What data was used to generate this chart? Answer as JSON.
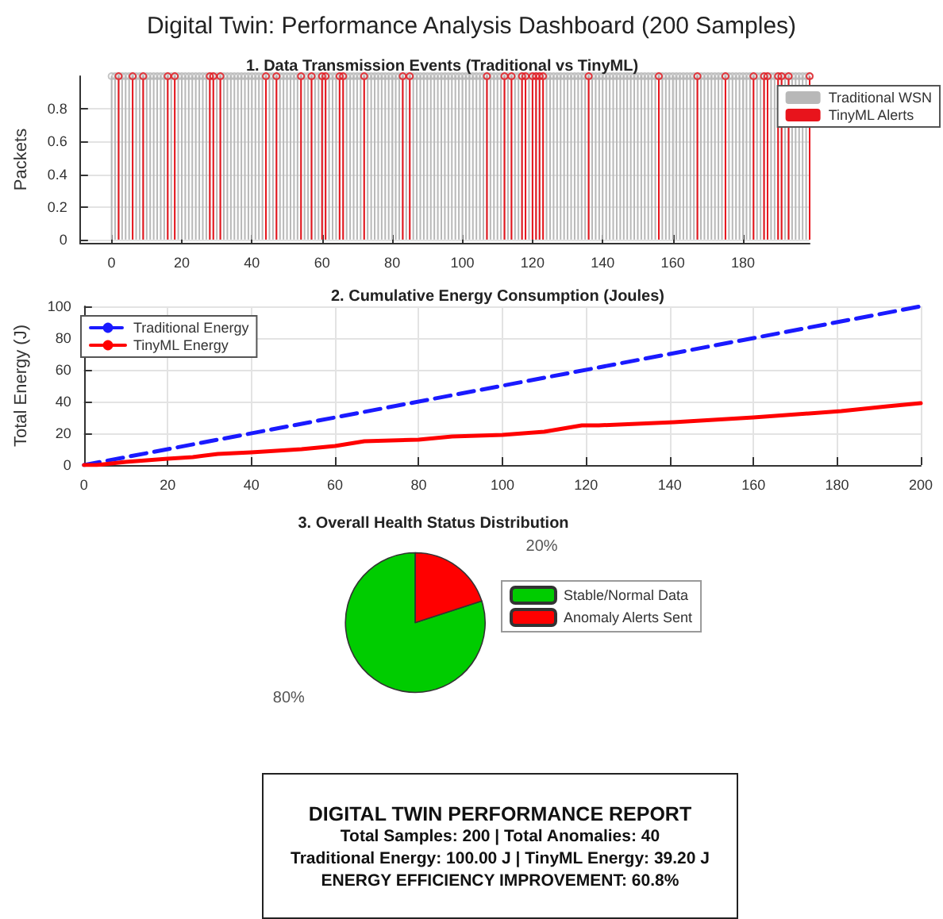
{
  "chart_data": [
    {
      "type": "lollipop",
      "subtitle": "Digital Twin: Performance Analysis Dashboard (200 Samples)",
      "title": "1. Data Transmission Events (Traditional vs TinyML)",
      "ylabel": "Packets",
      "xlim": [
        -9,
        199
      ],
      "xticks": [
        0,
        20,
        40,
        60,
        80,
        100,
        120,
        140,
        160,
        180
      ],
      "ylim": [
        -0.02,
        1
      ],
      "yticks": [
        0,
        0.2,
        0.4,
        0.6,
        0.8
      ],
      "grid": true,
      "legend": "top right",
      "marker": "circle",
      "series": [
        {
          "name": "Traditional WSN",
          "color": "#b8b8b8",
          "x": [
            0,
            1,
            2,
            3,
            4,
            5,
            6,
            7,
            8,
            9,
            10,
            11,
            12,
            13,
            14,
            15,
            16,
            17,
            18,
            19,
            20,
            21,
            22,
            23,
            24,
            25,
            26,
            27,
            28,
            29,
            30,
            31,
            32,
            33,
            34,
            35,
            36,
            37,
            38,
            39,
            40,
            41,
            42,
            43,
            44,
            45,
            46,
            47,
            48,
            49,
            50,
            51,
            52,
            53,
            54,
            55,
            56,
            57,
            58,
            59,
            60,
            61,
            62,
            63,
            64,
            65,
            66,
            67,
            68,
            69,
            70,
            71,
            72,
            73,
            74,
            75,
            76,
            77,
            78,
            79,
            80,
            81,
            82,
            83,
            84,
            85,
            86,
            87,
            88,
            89,
            90,
            91,
            92,
            93,
            94,
            95,
            96,
            97,
            98,
            99,
            100,
            101,
            102,
            103,
            104,
            105,
            106,
            107,
            108,
            109,
            110,
            111,
            112,
            113,
            114,
            115,
            116,
            117,
            118,
            119,
            120,
            121,
            122,
            123,
            124,
            125,
            126,
            127,
            128,
            129,
            130,
            131,
            132,
            133,
            134,
            135,
            136,
            137,
            138,
            139,
            140,
            141,
            142,
            143,
            144,
            145,
            146,
            147,
            148,
            149,
            150,
            151,
            152,
            153,
            154,
            155,
            156,
            157,
            158,
            159,
            160,
            161,
            162,
            163,
            164,
            165,
            166,
            167,
            168,
            169,
            170,
            171,
            172,
            173,
            174,
            175,
            176,
            177,
            178,
            179,
            180,
            181,
            182,
            183,
            184,
            185,
            186,
            187,
            188,
            189,
            190,
            191,
            192,
            193,
            194,
            195,
            196,
            197,
            198,
            199
          ],
          "values": [
            1,
            1,
            1,
            1,
            1,
            1,
            1,
            1,
            1,
            1,
            1,
            1,
            1,
            1,
            1,
            1,
            1,
            1,
            1,
            1,
            1,
            1,
            1,
            1,
            1,
            1,
            1,
            1,
            1,
            1,
            1,
            1,
            1,
            1,
            1,
            1,
            1,
            1,
            1,
            1,
            1,
            1,
            1,
            1,
            1,
            1,
            1,
            1,
            1,
            1,
            1,
            1,
            1,
            1,
            1,
            1,
            1,
            1,
            1,
            1,
            1,
            1,
            1,
            1,
            1,
            1,
            1,
            1,
            1,
            1,
            1,
            1,
            1,
            1,
            1,
            1,
            1,
            1,
            1,
            1,
            1,
            1,
            1,
            1,
            1,
            1,
            1,
            1,
            1,
            1,
            1,
            1,
            1,
            1,
            1,
            1,
            1,
            1,
            1,
            1,
            1,
            1,
            1,
            1,
            1,
            1,
            1,
            1,
            1,
            1,
            1,
            1,
            1,
            1,
            1,
            1,
            1,
            1,
            1,
            1,
            1,
            1,
            1,
            1,
            1,
            1,
            1,
            1,
            1,
            1,
            1,
            1,
            1,
            1,
            1,
            1,
            1,
            1,
            1,
            1,
            1,
            1,
            1,
            1,
            1,
            1,
            1,
            1,
            1,
            1,
            1,
            1,
            1,
            1,
            1,
            1,
            1,
            1,
            1,
            1,
            1,
            1,
            1,
            1,
            1,
            1,
            1,
            1,
            1,
            1,
            1,
            1,
            1,
            1,
            1,
            1,
            1,
            1,
            1,
            1,
            1,
            1,
            1,
            1,
            1,
            1,
            1,
            1,
            1,
            1,
            1,
            1,
            1,
            1,
            1,
            1,
            1,
            1,
            1,
            1
          ]
        },
        {
          "name": "TinyML Alerts",
          "color": "#e8141c",
          "x": [
            2,
            6,
            9,
            16,
            18,
            28,
            29,
            31,
            44,
            47,
            54,
            57,
            60,
            61,
            65,
            66,
            72,
            83,
            85,
            107,
            112,
            114,
            117,
            118,
            120,
            121,
            122,
            123,
            136,
            156,
            167,
            175,
            183,
            186,
            187,
            190,
            191,
            193,
            199
          ],
          "values": [
            1,
            1,
            1,
            1,
            1,
            1,
            1,
            1,
            1,
            1,
            1,
            1,
            1,
            1,
            1,
            1,
            1,
            1,
            1,
            1,
            1,
            1,
            1,
            1,
            1,
            1,
            1,
            1,
            1,
            1,
            1,
            1,
            1,
            1,
            1,
            1,
            1,
            1,
            1
          ]
        }
      ]
    },
    {
      "type": "line",
      "title": "2. Cumulative Energy Consumption (Joules)",
      "ylabel": "Total Energy (J)",
      "xlim": [
        0,
        200
      ],
      "xticks": [
        0,
        20,
        40,
        60,
        80,
        100,
        120,
        140,
        160,
        180,
        200
      ],
      "ylim": [
        0,
        100
      ],
      "yticks": [
        0,
        20,
        40,
        60,
        80,
        100
      ],
      "grid": true,
      "legend": "top left",
      "series": [
        {
          "name": "Traditional Energy",
          "color": "#1a1aff",
          "line_style": "dashed",
          "x": [
            0,
            200
          ],
          "values": [
            0,
            100
          ]
        },
        {
          "name": "TinyML Energy",
          "color": "#ff0000",
          "line_style": "solid",
          "x": [
            0,
            3,
            10,
            20,
            26,
            32,
            40,
            52,
            60,
            67,
            80,
            88,
            100,
            110,
            119,
            123,
            141,
            160,
            181,
            192,
            200
          ],
          "values": [
            0,
            0,
            2,
            4,
            5,
            7,
            8,
            10,
            12,
            15,
            16,
            18,
            19,
            21,
            25,
            25,
            27,
            30,
            34,
            37,
            39
          ]
        }
      ]
    },
    {
      "type": "pie",
      "title": "3. Overall Health Status Distribution",
      "categories": [
        "Stable/Normal Data",
        "Anomaly Alerts Sent"
      ],
      "values": [
        80,
        20
      ],
      "colors": [
        "#00cc00",
        "#ff0000"
      ],
      "value_labels": [
        "80%",
        "20%"
      ],
      "legend": "right"
    },
    {
      "type": "other",
      "title": "DIGITAL TWIN PERFORMANCE REPORT",
      "annotations": [
        "Total Samples: 200 | Total Anomalies: 40",
        "Traditional Energy: 100.00 J | TinyML Energy: 39.20 J",
        "ENERGY EFFICIENCY IMPROVEMENT: 60.8%"
      ]
    }
  ]
}
